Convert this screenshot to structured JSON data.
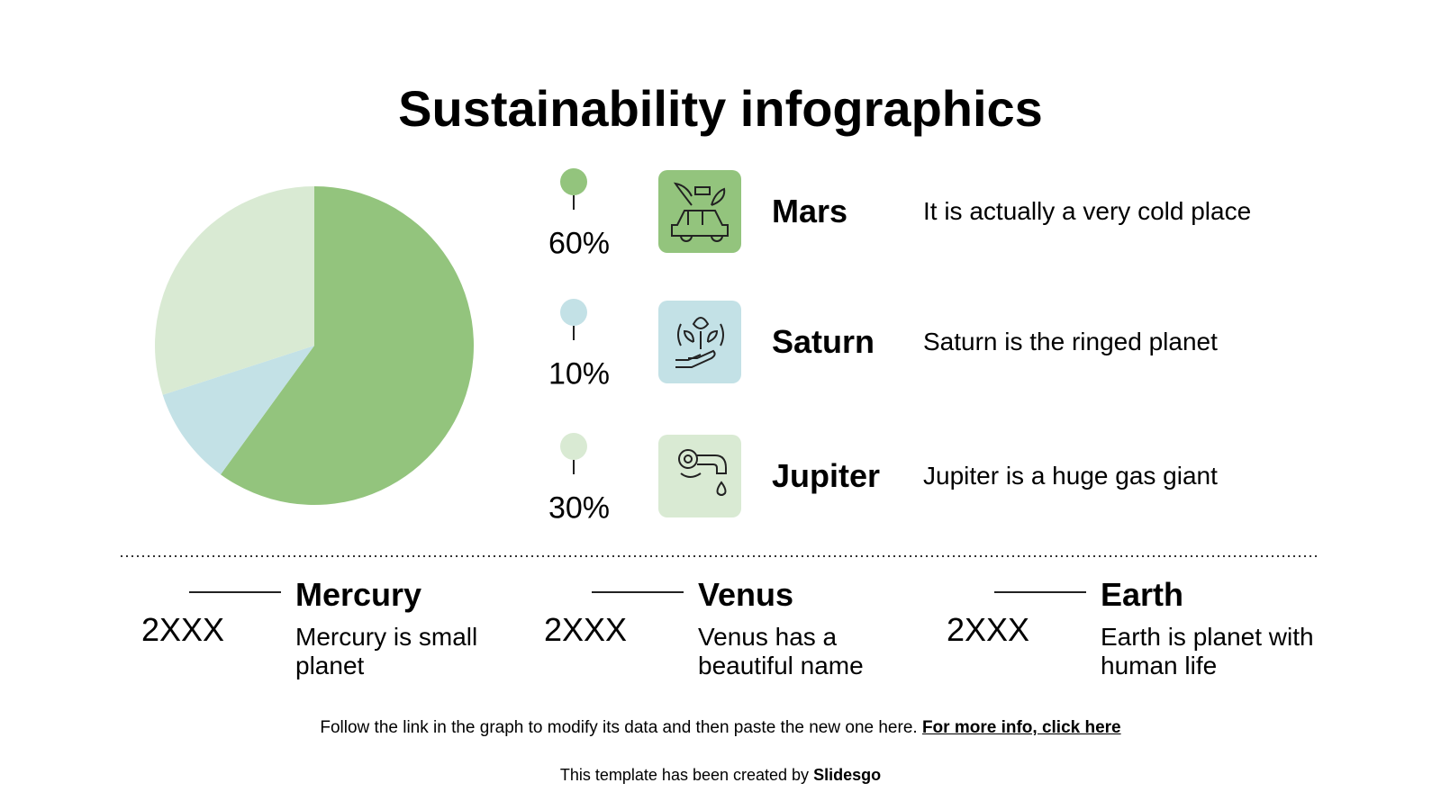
{
  "title": "Sustainability infographics",
  "chart_data": {
    "type": "pie",
    "categories": [
      "Mars",
      "Saturn",
      "Jupiter"
    ],
    "values": [
      60,
      10,
      30
    ],
    "value_labels": [
      "60%",
      "10%",
      "30%"
    ],
    "colors": [
      "#93c47d",
      "#c3e1e6",
      "#d9ead3"
    ]
  },
  "items": [
    {
      "description": "It is actually a very cold place"
    },
    {
      "description": "Saturn is the ringed planet"
    },
    {
      "description": "Jupiter is a huge gas giant"
    }
  ],
  "timeline": [
    {
      "year": "2XXX",
      "name": "Mercury",
      "text": "Mercury is small planet"
    },
    {
      "year": "2XXX",
      "name": "Venus",
      "text": "Venus has a beautiful name"
    },
    {
      "year": "2XXX",
      "name": "Earth",
      "text": "Earth is planet with human life"
    }
  ],
  "footer": {
    "text": "Follow the link in the graph to modify its data and then paste the new one here.",
    "link": "For more info, click here",
    "credit": "This template has been created by",
    "brand": "Slidesgo"
  }
}
